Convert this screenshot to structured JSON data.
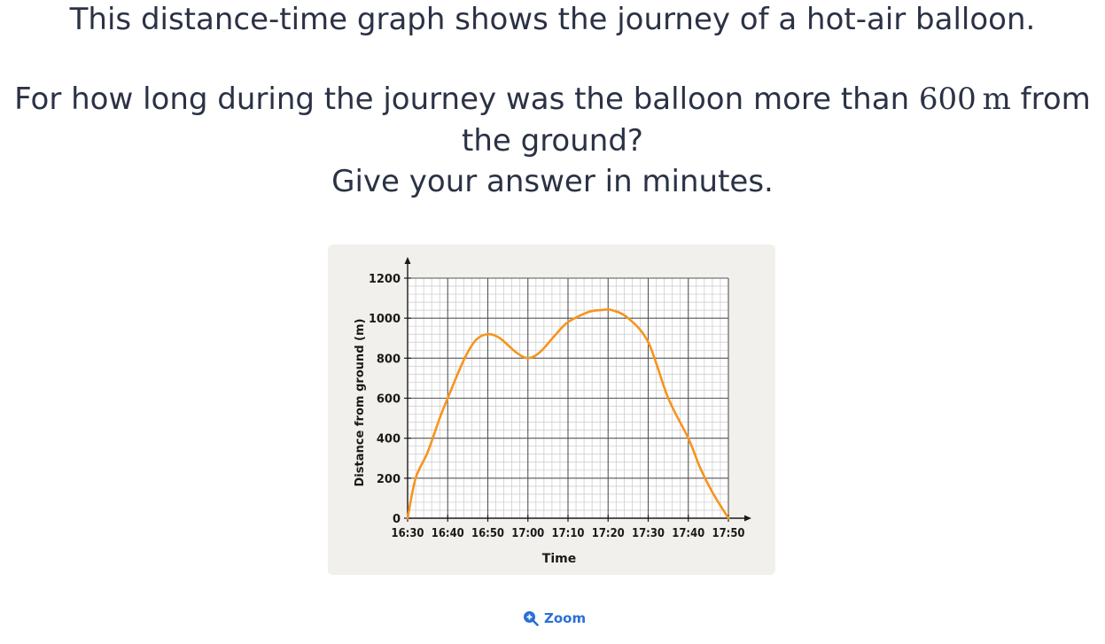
{
  "question": {
    "line1": "This distance-time graph shows the journey of a hot-air balloon.",
    "line2_before": "For how long during the journey was the balloon more than ",
    "line2_value": "600",
    "line2_unit": "m",
    "line2_after": " from",
    "line3": "the ground?",
    "line4": "Give your answer in minutes."
  },
  "zoom": {
    "label": "Zoom",
    "icon": "zoom-in-icon"
  },
  "colors": {
    "curve": "#f7941d",
    "grid_major": "#555555",
    "grid_minor": "#c8c8c8",
    "card_background": "#f2f0ec",
    "link": "#2a6fd6"
  },
  "chart_data": {
    "type": "line",
    "xlabel": "Time",
    "ylabel": "Distance from ground (m)",
    "x_ticks": [
      "16:30",
      "16:40",
      "16:50",
      "17:00",
      "17:10",
      "17:20",
      "17:30",
      "17:40",
      "17:50"
    ],
    "y_ticks": [
      0,
      200,
      400,
      600,
      800,
      1000,
      1200
    ],
    "xlim": [
      "16:30",
      "17:50"
    ],
    "ylim": [
      0,
      1200
    ],
    "grid": true,
    "minor_grid_per_major_x": 5,
    "minor_grid_per_major_y": 5,
    "series": [
      {
        "x": [
          "16:30",
          "16:32",
          "16:35",
          "16:38",
          "16:40",
          "16:44",
          "16:47",
          "16:50",
          "16:53",
          "16:57",
          "17:00",
          "17:03",
          "17:07",
          "17:10",
          "17:15",
          "17:18",
          "17:21",
          "17:25",
          "17:30",
          "17:35",
          "17:40",
          "17:43",
          "17:46",
          "17:50"
        ],
        "y": [
          0,
          200,
          330,
          500,
          600,
          790,
          890,
          920,
          900,
          830,
          800,
          830,
          920,
          980,
          1030,
          1040,
          1040,
          1000,
          880,
          600,
          400,
          250,
          130,
          0
        ]
      }
    ]
  }
}
